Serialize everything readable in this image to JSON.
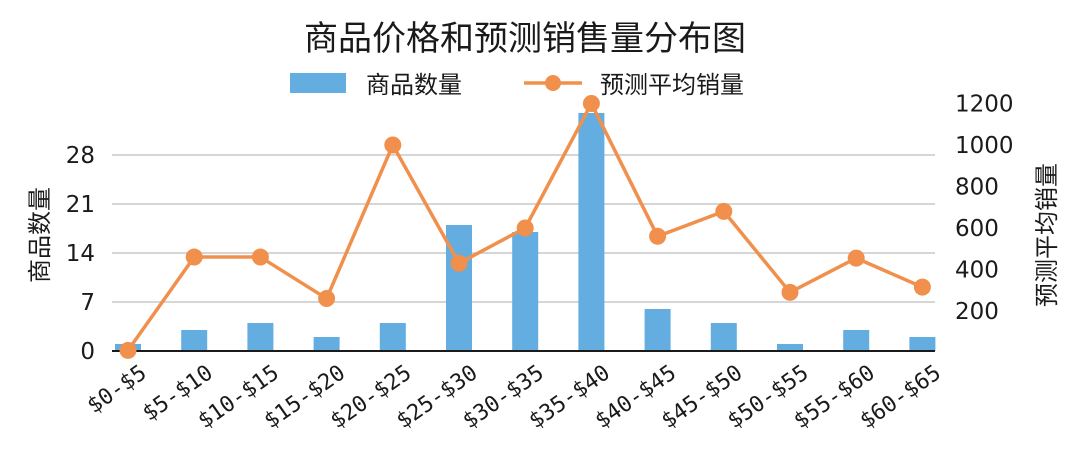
{
  "chart_data": {
    "type": "bar+line",
    "title": "商品价格和预测销售量分布图",
    "categories": [
      "$0-$5",
      "$5-$10",
      "$10-$15",
      "$15-$20",
      "$20-$25",
      "$25-$30",
      "$30-$35",
      "$35-$40",
      "$40-$45",
      "$45-$50",
      "$50-$55",
      "$55-$60",
      "$60-$65"
    ],
    "series": [
      {
        "name": "商品数量",
        "type": "bar",
        "axis": "left",
        "color": "#64ade0",
        "values": [
          1,
          3,
          4,
          2,
          4,
          18,
          17,
          34,
          6,
          4,
          1,
          3,
          2
        ]
      },
      {
        "name": "预测平均销量",
        "type": "line",
        "axis": "right",
        "color": "#f0904c",
        "values": [
          10,
          460,
          460,
          260,
          1000,
          430,
          600,
          1200,
          560,
          680,
          290,
          455,
          315
        ]
      }
    ],
    "ylabel_left": "商品数量",
    "ylabel_right": "预测平均销量",
    "yticks_left": [
      0,
      7,
      14,
      21,
      28
    ],
    "yticks_right": [
      200,
      400,
      600,
      800,
      1000,
      1200
    ],
    "ylim_left": [
      0,
      33
    ],
    "ylim_right": [
      0,
      1200
    ],
    "grid": true,
    "legend_position": "top-center"
  }
}
